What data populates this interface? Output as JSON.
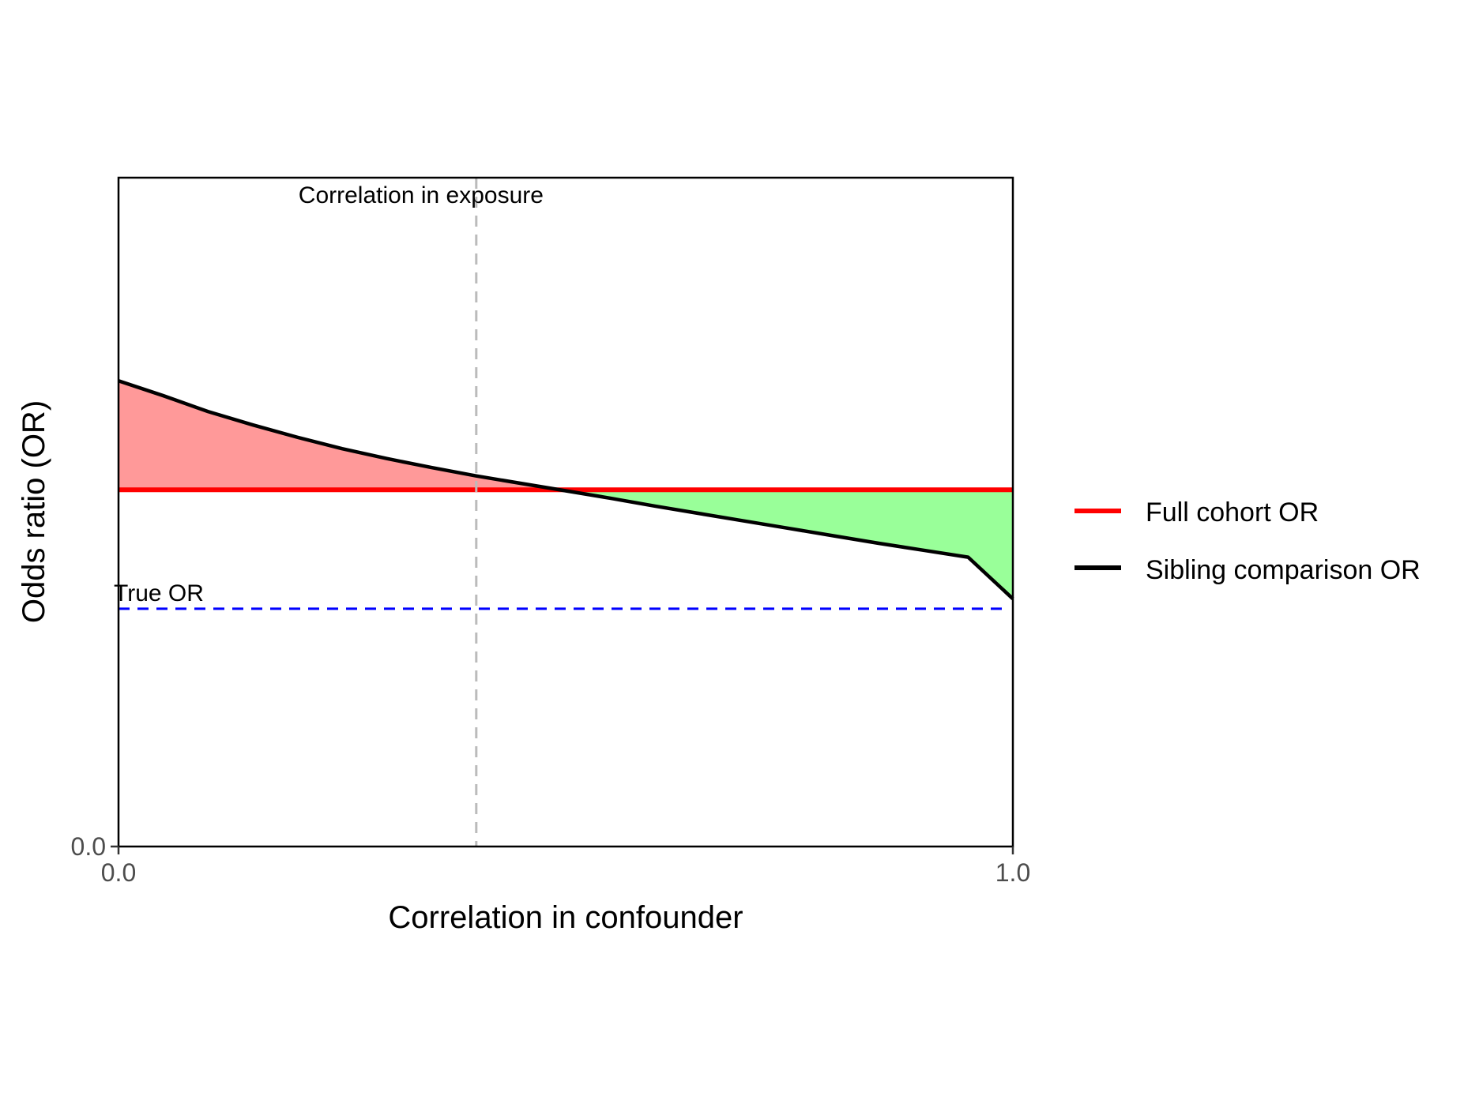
{
  "chart_data": {
    "type": "line",
    "xlabel": "Correlation in confounder",
    "ylabel": "Odds ratio (OR)",
    "xlim": [
      0,
      1
    ],
    "ylim": [
      0,
      1.35
    ],
    "x_ticks": [
      {
        "value": 0,
        "label": "0.0"
      },
      {
        "value": 1,
        "label": "1.0"
      }
    ],
    "y_ticks": [
      {
        "value": 0,
        "label": "0.0"
      }
    ],
    "grid": false,
    "legend_position": "right",
    "series": [
      {
        "name": "Full cohort OR",
        "color": "#ff0000",
        "x": [
          0,
          1
        ],
        "y": [
          0.72,
          0.72
        ]
      },
      {
        "name": "Sibling comparison OR",
        "color": "#000000",
        "x": [
          0,
          0.05,
          0.1,
          0.15,
          0.2,
          0.25,
          0.3,
          0.35,
          0.4,
          0.45,
          0.5,
          0.55,
          0.6,
          0.65,
          0.7,
          0.75,
          0.8,
          0.85,
          0.9,
          0.95,
          1.0
        ],
        "y": [
          0.94,
          0.91,
          0.878,
          0.851,
          0.826,
          0.803,
          0.783,
          0.765,
          0.748,
          0.733,
          0.718,
          0.703,
          0.687,
          0.672,
          0.657,
          0.642,
          0.627,
          0.612,
          0.598,
          0.584,
          0.5
        ]
      }
    ],
    "shaded_regions": [
      {
        "description_color": "#ff9999",
        "between": [
          "Sibling comparison OR",
          "Full cohort OR"
        ],
        "where": "sibling above full"
      },
      {
        "description_color": "#99ff99",
        "between": [
          "Full cohort OR",
          "Sibling comparison OR"
        ],
        "where": "full above sibling"
      }
    ],
    "annotations": [
      {
        "type": "vline",
        "x": 0.4,
        "color": "#bbbbbb",
        "style": "dashed",
        "label": "Correlation in exposure"
      },
      {
        "type": "hline",
        "y": 0.48,
        "color": "#0000ff",
        "style": "dashed",
        "label": "True OR"
      }
    ]
  }
}
